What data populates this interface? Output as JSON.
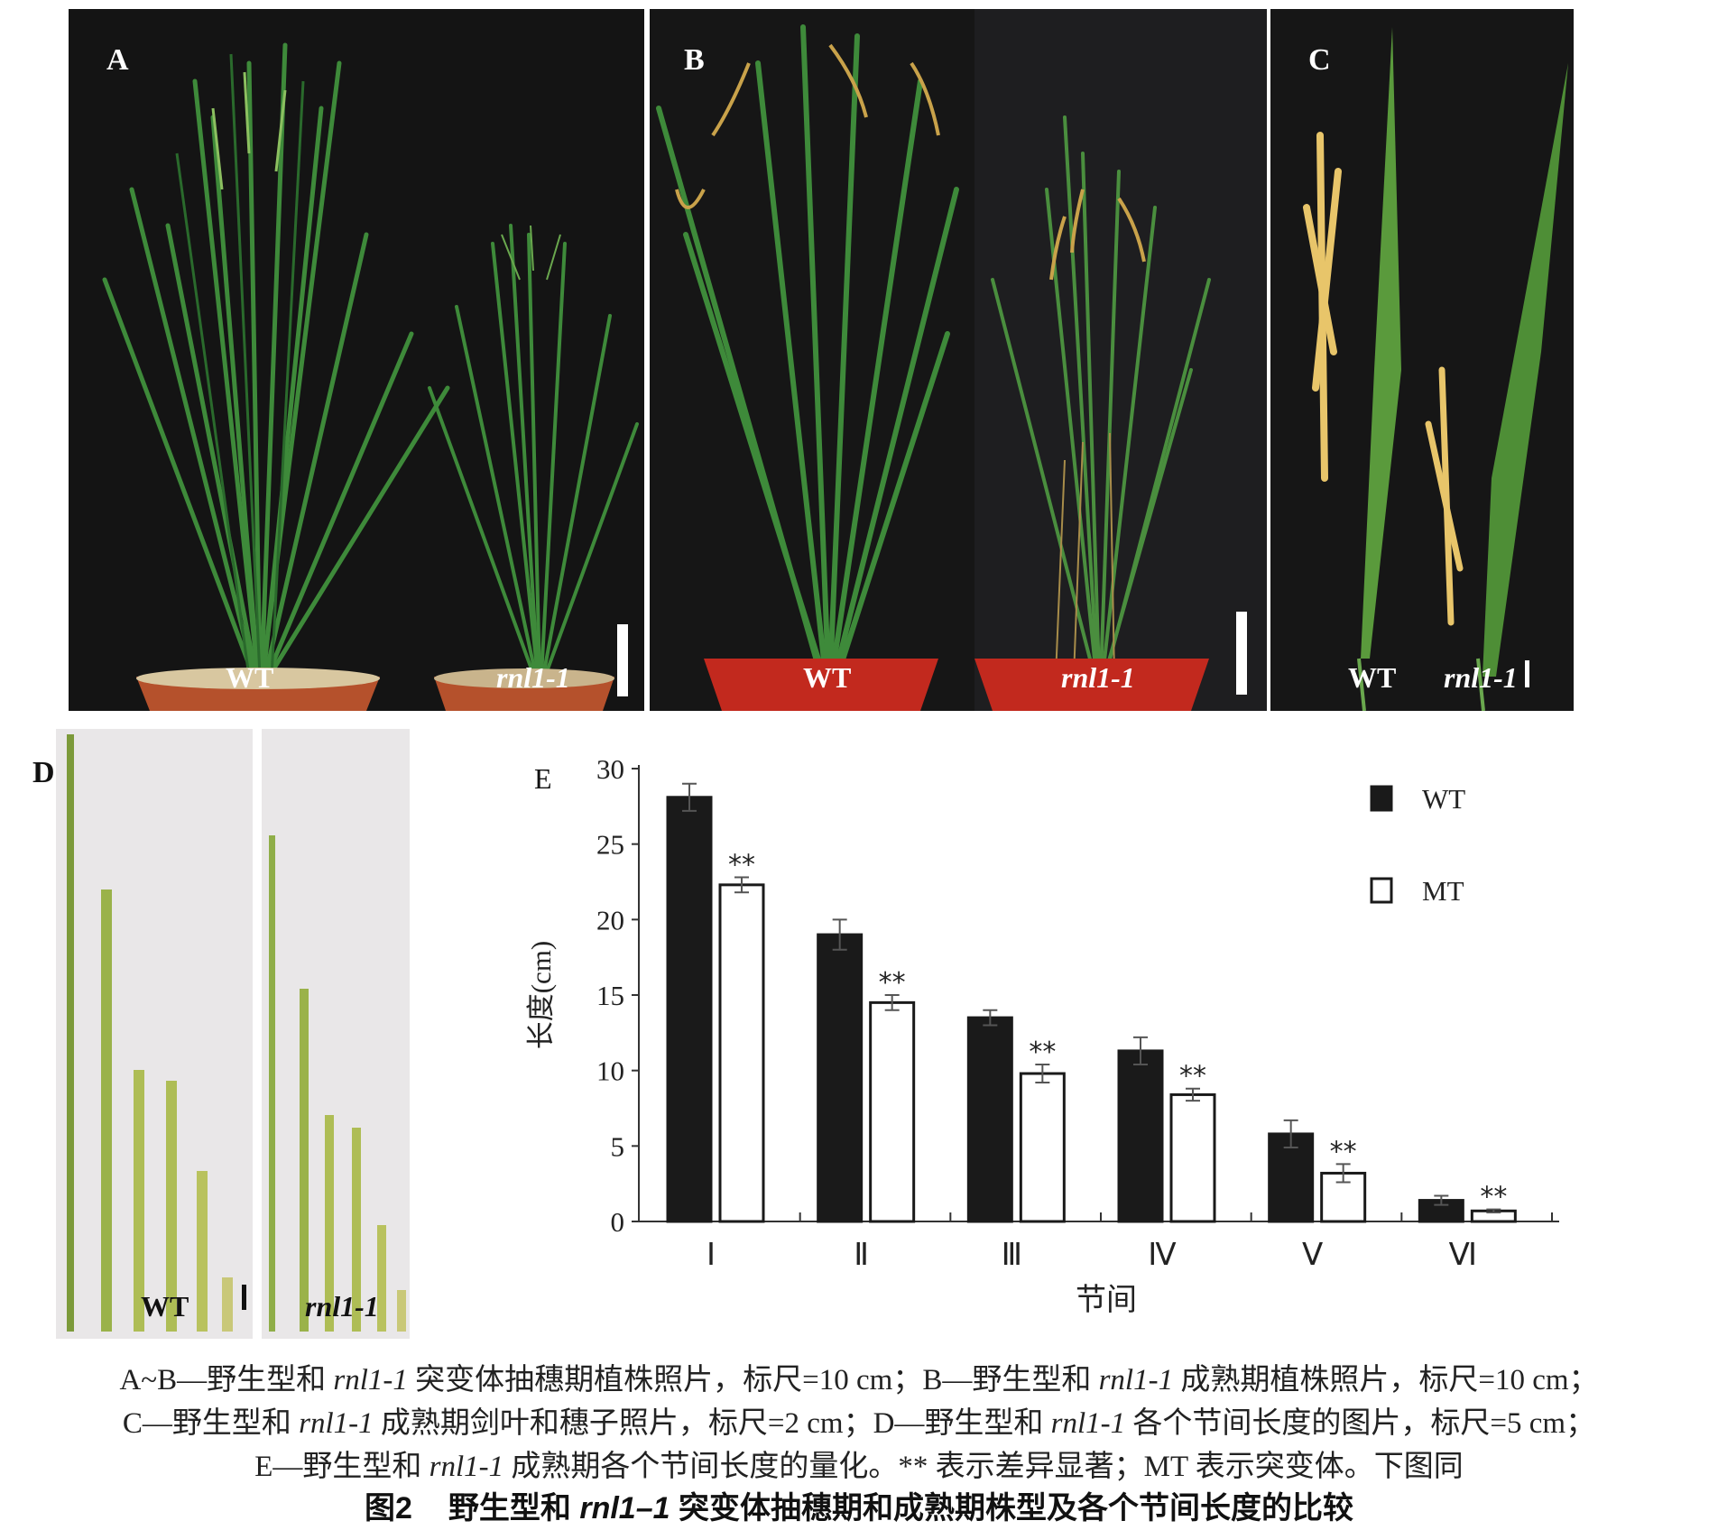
{
  "panels": {
    "A": {
      "label": "A",
      "left_genotype": "WT",
      "right_genotype": "rnl1-1"
    },
    "B": {
      "label": "B",
      "left_genotype": "WT",
      "right_genotype": "rnl1-1"
    },
    "C": {
      "label": "C",
      "left_genotype": "WT",
      "right_genotype": "rnl1-1"
    },
    "D": {
      "label": "D",
      "left_genotype": "WT",
      "right_genotype": "rnl1-1"
    },
    "E": {
      "label": "E"
    }
  },
  "chart_data": {
    "type": "bar",
    "panel": "E",
    "xlabel": "节间",
    "ylabel": "长度(cm)",
    "ylim": [
      0,
      30
    ],
    "yticks": [
      0,
      5,
      10,
      15,
      20,
      25,
      30
    ],
    "categories": [
      "Ⅰ",
      "Ⅱ",
      "Ⅲ",
      "Ⅳ",
      "Ⅴ",
      "Ⅵ"
    ],
    "series": [
      {
        "name": "WT",
        "color": "#1a1a1a",
        "values": [
          28.1,
          19.0,
          13.5,
          11.3,
          5.8,
          1.4
        ],
        "errors": [
          0.9,
          1.0,
          0.5,
          0.9,
          0.9,
          0.3
        ]
      },
      {
        "name": "MT",
        "color": "#ffffff",
        "values": [
          22.3,
          14.5,
          9.8,
          8.4,
          3.2,
          0.7
        ],
        "errors": [
          0.5,
          0.5,
          0.6,
          0.4,
          0.6,
          0.1
        ],
        "significance": [
          "**",
          "**",
          "**",
          "**",
          "**",
          "**"
        ]
      }
    ],
    "legend_position": "top-right",
    "grid": false
  },
  "caption": {
    "line1_a": "A~B—野生型和 ",
    "line1_i1": "rnl1-1",
    "line1_b": " 突变体抽穗期植株照片，标尺=10 cm；B—野生型和 ",
    "line1_i2": "rnl1-1",
    "line1_c": " 成熟期植株照片，标尺=10 cm；",
    "line2_a": "C—野生型和 ",
    "line2_i1": "rnl1-1",
    "line2_b": " 成熟期剑叶和穗子照片，标尺=2 cm；D—野生型和 ",
    "line2_i2": "rnl1-1",
    "line2_c": " 各个节间长度的图片，标尺=5 cm；",
    "line3_a": "E—野生型和 ",
    "line3_i1": "rnl1-1",
    "line3_b": " 成熟期各个节间长度的量化。** 表示差异显著；MT 表示突变体。下图同",
    "title_num": "图2",
    "title_a": "野生型和 ",
    "title_i": "rnl1–1",
    "title_b": " 突变体抽穗期和成熟期株型及各个节间长度的比较"
  },
  "colors": {
    "photo_bg": "#141414",
    "leaf": "#3e8a3a",
    "leaf_dark": "#2a6a2c",
    "panicle": "#c9a24a",
    "pot": "#b5512c",
    "stem": "#8fae48",
    "paper_bg": "#e9e7e8"
  }
}
